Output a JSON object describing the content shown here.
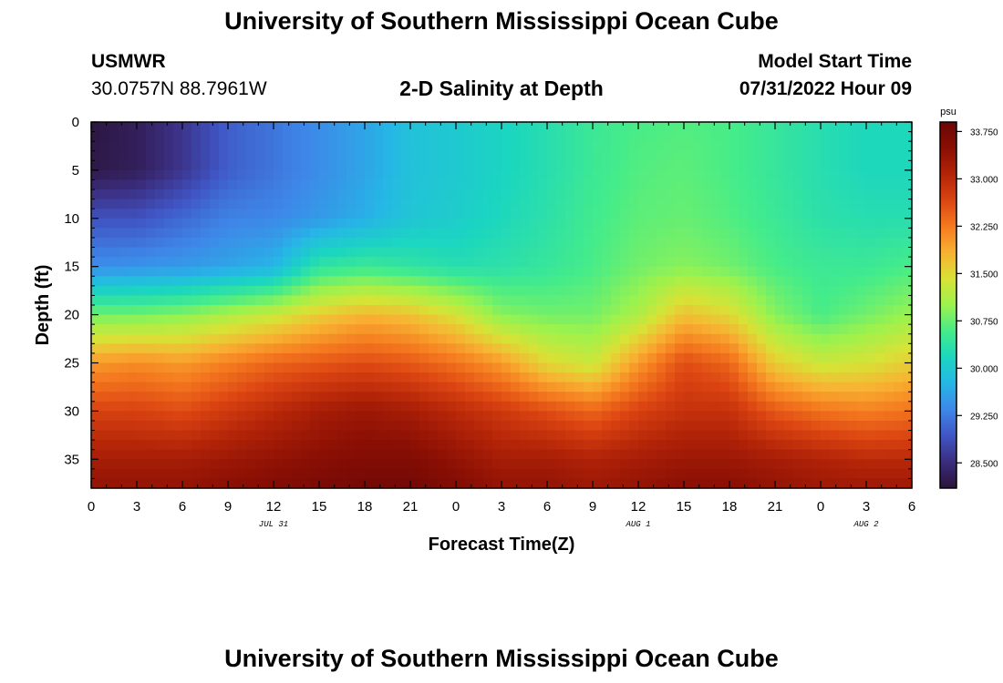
{
  "page": {
    "title_top": "University of Southern Mississippi Ocean Cube",
    "title_bottom": "University of Southern Mississippi Ocean Cube",
    "station_id": "USMWR",
    "coordinates": "30.0757N  88.7961W",
    "plot_title": "2-D Salinity at Depth",
    "model_start_label": "Model Start Time",
    "model_start_value": "07/31/2022 Hour 09"
  },
  "chart_data": {
    "type": "heatmap",
    "title": "2-D Salinity at Depth",
    "xlabel": "Forecast Time(Z)",
    "ylabel": "Depth (ft)",
    "xlim": [
      0,
      54
    ],
    "ylim": [
      38,
      0
    ],
    "x_ticks": [
      0,
      3,
      6,
      9,
      12,
      15,
      18,
      21,
      24,
      27,
      30,
      33,
      36,
      39,
      42,
      45,
      48,
      51,
      54
    ],
    "x_tick_labels": [
      "0",
      "3",
      "6",
      "9",
      "12",
      "15",
      "18",
      "21",
      "0",
      "3",
      "6",
      "9",
      "12",
      "15",
      "18",
      "21",
      "0",
      "3",
      "6"
    ],
    "day_labels": [
      {
        "x": 12,
        "label": "JUL 31"
      },
      {
        "x": 36,
        "label": "AUG 1"
      },
      {
        "x": 51,
        "label": "AUG 2"
      }
    ],
    "y_ticks": [
      0,
      5,
      10,
      15,
      20,
      25,
      30,
      35
    ],
    "y_tick_labels": [
      "0",
      "5",
      "10",
      "15",
      "20",
      "25",
      "30",
      "35"
    ],
    "colorbar": {
      "unit": "psu",
      "range": [
        28.1,
        33.9
      ],
      "tick_values": [
        28.5,
        29.25,
        30.0,
        30.75,
        31.5,
        32.25,
        33.0,
        33.75
      ],
      "tick_labels": [
        "28.500",
        "29.250",
        "30.000",
        "30.750",
        "31.500",
        "32.250",
        "33.000",
        "33.750"
      ],
      "colors": [
        "#2a1338",
        "#3b2d7e",
        "#4055c4",
        "#3e87e8",
        "#26b6e6",
        "#1bd6c0",
        "#45ec8a",
        "#9cf24d",
        "#d8e236",
        "#f8b232",
        "#f57a1f",
        "#dc4512",
        "#b32408",
        "#8a0f04",
        "#6b0606"
      ]
    },
    "x": [
      0,
      3,
      6,
      9,
      12,
      15,
      18,
      21,
      24,
      27,
      30,
      33,
      36,
      39,
      42,
      45,
      48,
      51,
      54
    ],
    "depth": [
      0,
      5,
      10,
      15,
      20,
      25,
      30,
      35,
      38
    ],
    "salinity": [
      [
        28.15,
        28.3,
        28.6,
        29.0,
        29.2,
        29.4,
        29.6,
        29.9,
        30.0,
        30.15,
        30.3,
        30.5,
        30.6,
        30.65,
        30.6,
        30.45,
        30.3,
        30.2,
        30.2
      ],
      [
        28.2,
        28.3,
        28.6,
        29.0,
        29.2,
        29.4,
        29.6,
        29.9,
        30.0,
        30.15,
        30.3,
        30.5,
        30.65,
        30.7,
        30.6,
        30.45,
        30.3,
        30.2,
        30.2
      ],
      [
        28.9,
        28.9,
        29.1,
        29.3,
        29.35,
        29.5,
        29.7,
        29.95,
        30.05,
        30.2,
        30.35,
        30.55,
        30.7,
        30.75,
        30.65,
        30.5,
        30.35,
        30.3,
        30.3
      ],
      [
        29.4,
        29.45,
        29.5,
        29.6,
        29.75,
        30.4,
        30.5,
        30.4,
        30.3,
        30.35,
        30.45,
        30.6,
        30.8,
        30.9,
        30.8,
        30.6,
        30.5,
        30.5,
        30.6
      ],
      [
        30.8,
        30.8,
        30.9,
        31.1,
        31.3,
        31.6,
        31.8,
        31.7,
        31.4,
        30.9,
        30.8,
        30.8,
        31.1,
        31.7,
        31.5,
        30.9,
        30.6,
        30.8,
        31.0
      ],
      [
        32.0,
        32.1,
        32.0,
        32.2,
        32.4,
        32.5,
        32.6,
        32.5,
        32.3,
        32.0,
        31.5,
        31.3,
        32.0,
        32.6,
        32.4,
        31.6,
        31.3,
        31.4,
        31.6
      ],
      [
        32.7,
        32.7,
        32.6,
        32.8,
        33.0,
        33.2,
        33.3,
        33.2,
        33.0,
        32.8,
        32.6,
        32.4,
        32.7,
        32.9,
        32.9,
        32.5,
        32.3,
        32.2,
        32.3
      ],
      [
        33.2,
        33.2,
        33.2,
        33.3,
        33.4,
        33.5,
        33.6,
        33.6,
        33.4,
        33.2,
        33.2,
        33.1,
        33.2,
        33.3,
        33.3,
        33.2,
        33.1,
        33.0,
        33.0
      ],
      [
        33.4,
        33.4,
        33.4,
        33.5,
        33.6,
        33.7,
        33.8,
        33.8,
        33.6,
        33.4,
        33.4,
        33.3,
        33.4,
        33.5,
        33.5,
        33.4,
        33.3,
        33.3,
        33.3
      ]
    ]
  }
}
